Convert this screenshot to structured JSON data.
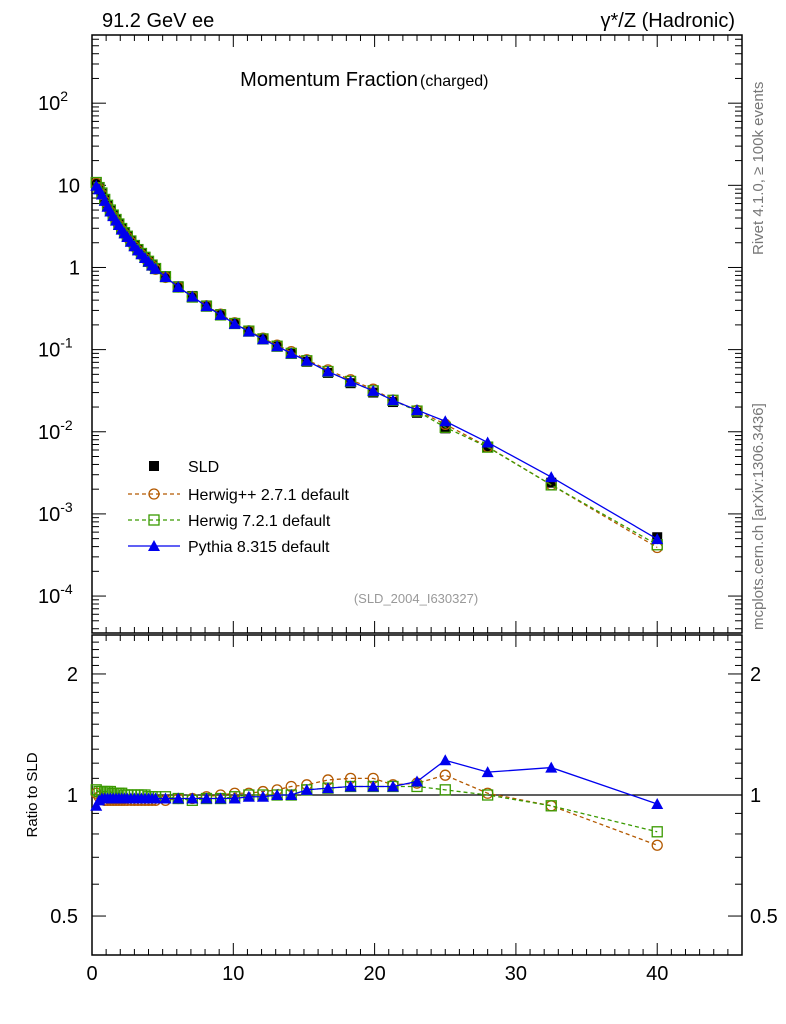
{
  "header": {
    "left": "91.2 GeV ee",
    "right": "γ*/Z (Hadronic)"
  },
  "side": {
    "rivet": "Rivet 4.1.0, ≥ 100k events",
    "mcplots": "mcplots.cern.ch [arXiv:1306.3436]"
  },
  "chart_data": {
    "type": "line",
    "title": "Momentum Fraction",
    "subtitle": "(charged)",
    "analysis": "(SLD_2004_I630327)",
    "xlabel": "",
    "ylabel": "",
    "ratio_ylabel": "Ratio to SLD",
    "xlim": [
      0,
      46
    ],
    "ylim": [
      3.55e-05,
      676
    ],
    "yscale": "log",
    "ratio_ylim": [
      0.4,
      2.5
    ],
    "xticks": [
      "0",
      "10",
      "20",
      "30",
      "40"
    ],
    "yticks": [
      {
        "base": "10",
        "exp": "-4"
      },
      {
        "base": "10",
        "exp": "-3"
      },
      {
        "base": "10",
        "exp": "-2"
      },
      {
        "base": "10",
        "exp": "-1"
      },
      {
        "base": "1",
        "exp": ""
      },
      {
        "base": "10",
        "exp": ""
      },
      {
        "base": "10",
        "exp": "2"
      }
    ],
    "ratio_yticks": [
      "0.5",
      "1",
      "2"
    ],
    "legend_position": "bottom-left",
    "x": [
      0.3,
      0.5,
      0.7,
      0.9,
      1.1,
      1.3,
      1.5,
      1.7,
      1.9,
      2.1,
      2.3,
      2.5,
      2.75,
      3.0,
      3.25,
      3.5,
      3.75,
      4.0,
      4.25,
      4.5,
      5.2,
      6.1,
      7.1,
      8.1,
      9.1,
      10.1,
      11.1,
      12.1,
      13.1,
      14.1,
      15.2,
      16.7,
      18.3,
      19.9,
      21.3,
      23,
      25,
      28,
      32.5,
      40
    ],
    "data": {
      "name": "SLD",
      "color": "#000000",
      "values": [
        10.5,
        9.2,
        7.9,
        6.6,
        5.6,
        4.9,
        4.3,
        3.8,
        3.35,
        2.95,
        2.65,
        2.4,
        2.1,
        1.85,
        1.65,
        1.48,
        1.33,
        1.2,
        1.08,
        0.98,
        0.78,
        0.59,
        0.45,
        0.345,
        0.27,
        0.21,
        0.168,
        0.135,
        0.11,
        0.09,
        0.071,
        0.052,
        0.039,
        0.03,
        0.023,
        0.017,
        0.011,
        0.0065,
        0.0024,
        0.00052
      ]
    },
    "series": [
      {
        "name": "Herwig++ 2.7.1 default",
        "color": "#b35900",
        "marker": "circle",
        "dash": true,
        "ratio": [
          1.01,
          0.99,
          0.98,
          0.97,
          0.97,
          0.97,
          0.97,
          0.97,
          0.97,
          0.97,
          0.97,
          0.97,
          0.97,
          0.97,
          0.97,
          0.97,
          0.97,
          0.97,
          0.97,
          0.97,
          0.97,
          0.98,
          0.98,
          0.99,
          1.0,
          1.01,
          1.01,
          1.02,
          1.03,
          1.05,
          1.06,
          1.09,
          1.1,
          1.1,
          1.06,
          1.07,
          1.12,
          1.01,
          0.94,
          0.75
        ]
      },
      {
        "name": "Herwig 7.2.1 default",
        "color": "#3a9a00",
        "marker": "square",
        "dash": true,
        "ratio": [
          1.03,
          1.02,
          1.02,
          1.02,
          1.02,
          1.02,
          1.01,
          1.01,
          1.01,
          1.01,
          1.0,
          1.0,
          1.0,
          1.0,
          1.0,
          1.0,
          1.0,
          0.99,
          0.99,
          0.99,
          0.99,
          0.98,
          0.97,
          0.98,
          0.98,
          0.99,
          1.0,
          1.0,
          1.0,
          1.0,
          1.03,
          1.04,
          1.05,
          1.05,
          1.05,
          1.05,
          1.03,
          1.0,
          0.94,
          0.81
        ]
      },
      {
        "name": "Pythia 8.315 default",
        "color": "#0000ee",
        "marker": "triangle",
        "dash": false,
        "ratio": [
          0.94,
          0.97,
          0.98,
          0.98,
          0.98,
          0.98,
          0.98,
          0.98,
          0.98,
          0.98,
          0.98,
          0.98,
          0.98,
          0.98,
          0.98,
          0.98,
          0.98,
          0.98,
          0.98,
          0.98,
          0.98,
          0.98,
          0.98,
          0.98,
          0.98,
          0.98,
          0.99,
          0.99,
          1.0,
          1.0,
          1.03,
          1.04,
          1.05,
          1.05,
          1.05,
          1.08,
          1.22,
          1.14,
          1.17,
          0.95
        ]
      }
    ]
  }
}
